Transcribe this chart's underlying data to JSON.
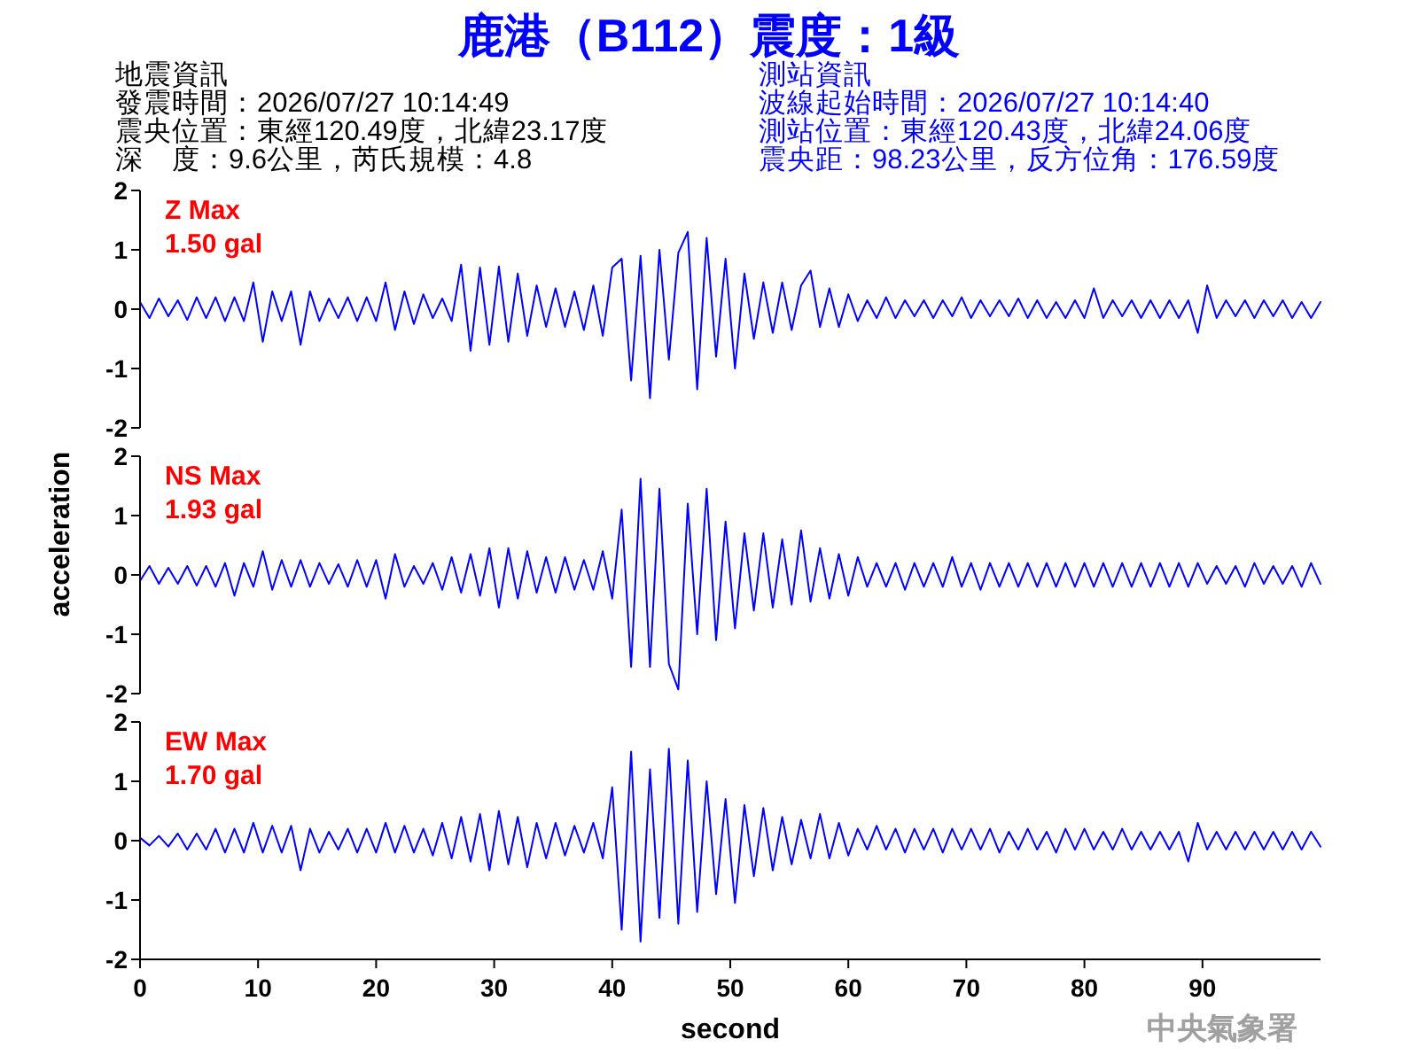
{
  "chart_data": [
    {
      "type": "line",
      "title": "鹿港（B112）震度：1級",
      "annotations": [
        "Z Max",
        "1.50 gal",
        "地震資訊",
        "發震時間：2026/07/27 10:14:49",
        "震央位置：東經120.49度，北緯23.17度",
        "深　度：9.6公里，芮氏規模：4.8",
        "測站資訊",
        "波線起始時間：2026/07/27 10:14:40",
        "測站位置：東經120.43度，北緯24.06度",
        "震央距：98.23公里，反方位角：176.59度"
      ],
      "x": [
        0,
        0.8,
        1.6,
        2.4,
        3.2,
        4,
        4.8,
        5.6,
        6.4,
        7.2,
        8,
        8.8,
        9.6,
        10.4,
        11.2,
        12,
        12.8,
        13.6,
        14.4,
        15.2,
        16,
        16.8,
        17.6,
        18.4,
        19.2,
        20,
        20.8,
        21.6,
        22.4,
        23.2,
        24,
        24.8,
        25.6,
        26.4,
        27.2,
        28,
        28.8,
        29.6,
        30.4,
        31.2,
        32,
        32.8,
        33.6,
        34.4,
        35.2,
        36,
        36.8,
        37.6,
        38.4,
        39.2,
        40,
        40.8,
        41.6,
        42.4,
        43.2,
        44,
        44.8,
        45.6,
        46.4,
        47.2,
        48,
        48.8,
        49.6,
        50.4,
        51.2,
        52,
        52.8,
        53.6,
        54.4,
        55.2,
        56,
        56.8,
        57.6,
        58.4,
        59.2,
        60,
        60.8,
        61.6,
        62.4,
        63.2,
        64,
        64.8,
        65.6,
        66.4,
        67.2,
        68,
        68.8,
        69.6,
        70.4,
        71.2,
        72,
        72.8,
        73.6,
        74.4,
        75.2,
        76,
        76.8,
        77.6,
        78.4,
        79.2,
        80,
        80.8,
        81.6,
        82.4,
        83.2,
        84,
        84.8,
        85.6,
        86.4,
        87.2,
        88,
        88.8,
        89.6,
        90.4,
        91.2,
        92,
        92.8,
        93.6,
        94.4,
        95.2,
        96,
        96.8,
        97.6,
        98.4,
        99.2,
        100
      ],
      "values": [
        0.12,
        -0.15,
        0.18,
        -0.12,
        0.15,
        -0.18,
        0.2,
        -0.15,
        0.2,
        -0.2,
        0.2,
        -0.2,
        0.45,
        -0.55,
        0.3,
        -0.2,
        0.3,
        -0.6,
        0.3,
        -0.2,
        0.18,
        -0.15,
        0.2,
        -0.2,
        0.2,
        -0.2,
        0.45,
        -0.35,
        0.3,
        -0.25,
        0.25,
        -0.15,
        0.18,
        -0.2,
        0.75,
        -0.7,
        0.7,
        -0.6,
        0.72,
        -0.55,
        0.6,
        -0.45,
        0.4,
        -0.3,
        0.35,
        -0.3,
        0.3,
        -0.35,
        0.4,
        -0.45,
        0.7,
        0.85,
        -1.2,
        0.9,
        -1.5,
        1.0,
        -0.85,
        0.95,
        1.3,
        -1.35,
        1.2,
        -0.8,
        0.85,
        -1.0,
        0.6,
        -0.5,
        0.45,
        -0.4,
        0.45,
        -0.35,
        0.4,
        0.65,
        -0.3,
        0.35,
        -0.3,
        0.25,
        -0.2,
        0.15,
        -0.15,
        0.2,
        -0.15,
        0.15,
        -0.12,
        0.15,
        -0.15,
        0.15,
        -0.12,
        0.2,
        -0.15,
        0.15,
        -0.12,
        0.15,
        -0.12,
        0.18,
        -0.15,
        0.15,
        -0.15,
        0.12,
        -0.15,
        0.15,
        -0.15,
        0.35,
        -0.15,
        0.15,
        -0.12,
        0.15,
        -0.15,
        0.15,
        -0.15,
        0.15,
        -0.15,
        0.15,
        -0.4,
        0.4,
        -0.15,
        0.15,
        -0.12,
        0.15,
        -0.15,
        0.15,
        -0.12,
        0.15,
        -0.15,
        0.12,
        -0.15,
        0.12
      ],
      "color": "#0000ff",
      "ylim": [
        -2,
        2
      ],
      "yticks": [
        -2,
        -1,
        0,
        1,
        2
      ],
      "tick_labels": "y"
    },
    {
      "type": "line",
      "ylabel": "acceleration",
      "annotations": [
        "NS Max",
        "1.93 gal"
      ],
      "x": [
        0,
        0.8,
        1.6,
        2.4,
        3.2,
        4,
        4.8,
        5.6,
        6.4,
        7.2,
        8,
        8.8,
        9.6,
        10.4,
        11.2,
        12,
        12.8,
        13.6,
        14.4,
        15.2,
        16,
        16.8,
        17.6,
        18.4,
        19.2,
        20,
        20.8,
        21.6,
        22.4,
        23.2,
        24,
        24.8,
        25.6,
        26.4,
        27.2,
        28,
        28.8,
        29.6,
        30.4,
        31.2,
        32,
        32.8,
        33.6,
        34.4,
        35.2,
        36,
        36.8,
        37.6,
        38.4,
        39.2,
        40,
        40.8,
        41.6,
        42.4,
        43.2,
        44,
        44.8,
        45.6,
        46.4,
        47.2,
        48,
        48.8,
        49.6,
        50.4,
        51.2,
        52,
        52.8,
        53.6,
        54.4,
        55.2,
        56,
        56.8,
        57.6,
        58.4,
        59.2,
        60,
        60.8,
        61.6,
        62.4,
        63.2,
        64,
        64.8,
        65.6,
        66.4,
        67.2,
        68,
        68.8,
        69.6,
        70.4,
        71.2,
        72,
        72.8,
        73.6,
        74.4,
        75.2,
        76,
        76.8,
        77.6,
        78.4,
        79.2,
        80,
        80.8,
        81.6,
        82.4,
        83.2,
        84,
        84.8,
        85.6,
        86.4,
        87.2,
        88,
        88.8,
        89.6,
        90.4,
        91.2,
        92,
        92.8,
        93.6,
        94.4,
        95.2,
        96,
        96.8,
        97.6,
        98.4,
        99.2,
        100
      ],
      "values": [
        -0.1,
        0.15,
        -0.15,
        0.12,
        -0.15,
        0.15,
        -0.18,
        0.15,
        -0.2,
        0.2,
        -0.35,
        0.2,
        -0.2,
        0.4,
        -0.25,
        0.25,
        -0.2,
        0.25,
        -0.2,
        0.2,
        -0.15,
        0.18,
        -0.2,
        0.25,
        -0.2,
        0.25,
        -0.4,
        0.35,
        -0.2,
        0.15,
        -0.15,
        0.2,
        -0.25,
        0.3,
        -0.3,
        0.35,
        -0.35,
        0.45,
        -0.55,
        0.45,
        -0.4,
        0.4,
        -0.3,
        0.3,
        -0.3,
        0.3,
        -0.25,
        0.25,
        -0.25,
        0.4,
        -0.4,
        1.1,
        -1.55,
        1.62,
        -1.55,
        1.45,
        -1.5,
        -1.93,
        1.2,
        -1.0,
        1.45,
        -1.1,
        0.9,
        -0.9,
        0.7,
        -0.6,
        0.7,
        -0.55,
        0.6,
        -0.5,
        0.75,
        -0.45,
        0.45,
        -0.4,
        0.35,
        -0.35,
        0.3,
        -0.2,
        0.2,
        -0.2,
        0.2,
        -0.25,
        0.2,
        -0.2,
        0.2,
        -0.2,
        0.3,
        -0.2,
        0.2,
        -0.25,
        0.2,
        -0.2,
        0.2,
        -0.2,
        0.2,
        -0.2,
        0.2,
        -0.2,
        0.2,
        -0.2,
        0.2,
        -0.2,
        0.2,
        -0.2,
        0.2,
        -0.2,
        0.2,
        -0.2,
        0.2,
        -0.2,
        0.2,
        -0.2,
        0.2,
        -0.15,
        0.15,
        -0.15,
        0.15,
        -0.2,
        0.2,
        -0.15,
        0.15,
        -0.15,
        0.15,
        -0.2,
        0.2,
        -0.15
      ],
      "color": "#0000ff",
      "ylim": [
        -2,
        2
      ],
      "yticks": [
        -2,
        -1,
        0,
        1,
        2
      ],
      "tick_labels": "y"
    },
    {
      "type": "line",
      "xlabel": "second",
      "annotations": [
        "EW Max",
        "1.70 gal",
        "中央氣象署"
      ],
      "x": [
        0,
        0.8,
        1.6,
        2.4,
        3.2,
        4,
        4.8,
        5.6,
        6.4,
        7.2,
        8,
        8.8,
        9.6,
        10.4,
        11.2,
        12,
        12.8,
        13.6,
        14.4,
        15.2,
        16,
        16.8,
        17.6,
        18.4,
        19.2,
        20,
        20.8,
        21.6,
        22.4,
        23.2,
        24,
        24.8,
        25.6,
        26.4,
        27.2,
        28,
        28.8,
        29.6,
        30.4,
        31.2,
        32,
        32.8,
        33.6,
        34.4,
        35.2,
        36,
        36.8,
        37.6,
        38.4,
        39.2,
        40,
        40.8,
        41.6,
        42.4,
        43.2,
        44,
        44.8,
        45.6,
        46.4,
        47.2,
        48,
        48.8,
        49.6,
        50.4,
        51.2,
        52,
        52.8,
        53.6,
        54.4,
        55.2,
        56,
        56.8,
        57.6,
        58.4,
        59.2,
        60,
        60.8,
        61.6,
        62.4,
        63.2,
        64,
        64.8,
        65.6,
        66.4,
        67.2,
        68,
        68.8,
        69.6,
        70.4,
        71.2,
        72,
        72.8,
        73.6,
        74.4,
        75.2,
        76,
        76.8,
        77.6,
        78.4,
        79.2,
        80,
        80.8,
        81.6,
        82.4,
        83.2,
        84,
        84.8,
        85.6,
        86.4,
        87.2,
        88,
        88.8,
        89.6,
        90.4,
        91.2,
        92,
        92.8,
        93.6,
        94.4,
        95.2,
        96,
        96.8,
        97.6,
        98.4,
        99.2,
        100
      ],
      "values": [
        0.05,
        -0.08,
        0.08,
        -0.1,
        0.12,
        -0.15,
        0.12,
        -0.15,
        0.2,
        -0.2,
        0.2,
        -0.2,
        0.3,
        -0.2,
        0.25,
        -0.2,
        0.25,
        -0.5,
        0.2,
        -0.2,
        0.15,
        -0.15,
        0.2,
        -0.2,
        0.2,
        -0.2,
        0.3,
        -0.2,
        0.25,
        -0.2,
        0.2,
        -0.25,
        0.3,
        -0.3,
        0.4,
        -0.35,
        0.45,
        -0.5,
        0.5,
        -0.4,
        0.4,
        -0.45,
        0.3,
        -0.3,
        0.3,
        -0.25,
        0.25,
        -0.2,
        0.3,
        -0.3,
        0.9,
        -1.5,
        1.5,
        -1.7,
        1.2,
        -1.3,
        1.55,
        -1.4,
        1.35,
        -1.2,
        1.0,
        -0.9,
        0.7,
        -1.05,
        0.6,
        -0.6,
        0.55,
        -0.5,
        0.4,
        -0.4,
        0.35,
        -0.3,
        0.45,
        -0.3,
        0.3,
        -0.25,
        0.2,
        -0.15,
        0.25,
        -0.15,
        0.2,
        -0.2,
        0.2,
        -0.15,
        0.2,
        -0.2,
        0.2,
        -0.15,
        0.2,
        -0.15,
        0.2,
        -0.2,
        0.15,
        -0.15,
        0.2,
        -0.15,
        0.15,
        -0.2,
        0.2,
        -0.15,
        0.2,
        -0.15,
        0.15,
        -0.15,
        0.2,
        -0.15,
        0.15,
        -0.15,
        0.15,
        -0.15,
        0.15,
        -0.35,
        0.3,
        -0.15,
        0.15,
        -0.15,
        0.15,
        -0.15,
        0.15,
        -0.15,
        0.15,
        -0.15,
        0.15,
        -0.15,
        0.15,
        -0.1
      ],
      "color": "#0000ff",
      "xlim": [
        0,
        100
      ],
      "ylim": [
        -2,
        2
      ],
      "yticks": [
        -2,
        -1,
        0,
        1,
        2
      ],
      "xticks": [
        0,
        10,
        20,
        30,
        40,
        50,
        60,
        70,
        80,
        90
      ]
    }
  ]
}
